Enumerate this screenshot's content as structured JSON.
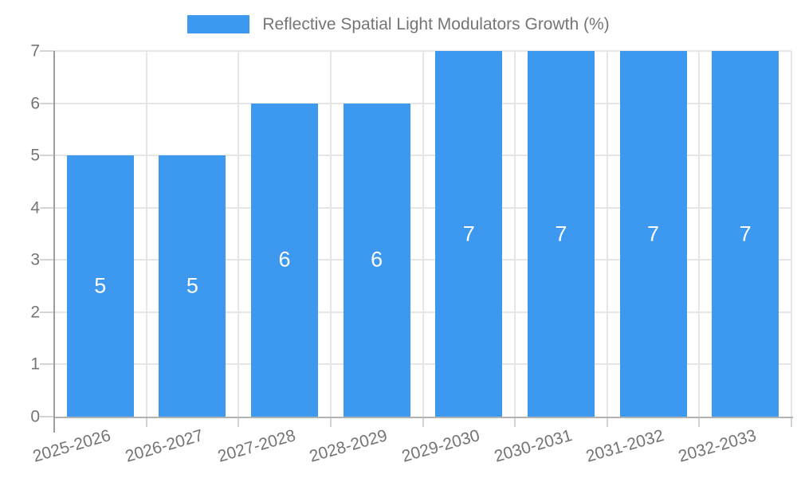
{
  "legend": {
    "label": "Reflective Spatial Light Modulators Growth (%)"
  },
  "colors": {
    "bar": "#3d99f0",
    "axis_text": "#757575",
    "grid": "#e6e6e6",
    "x_axis_line": "#b3b3b3",
    "y_axis_line": "#9e9e9e",
    "tick": "#d4d4d4",
    "value_label": "#ffffff",
    "background": "#ffffff"
  },
  "chart_data": {
    "type": "bar",
    "title": "Reflective Spatial Light Modulators Growth (%)",
    "categories": [
      "2025-2026",
      "2026-2027",
      "2027-2028",
      "2028-2029",
      "2029-2030",
      "2030-2031",
      "2031-2032",
      "2032-2033"
    ],
    "values": [
      5,
      5,
      6,
      6,
      7,
      7,
      7,
      7
    ],
    "value_labels": [
      "5",
      "5",
      "6",
      "6",
      "7",
      "7",
      "7",
      "7"
    ],
    "xlabel": "",
    "ylabel": "",
    "ylim": [
      0,
      7
    ],
    "yticks": [
      0,
      1,
      2,
      3,
      4,
      5,
      6,
      7
    ],
    "grid": true,
    "legend_position": "top-center",
    "value_labels_shown": true
  }
}
